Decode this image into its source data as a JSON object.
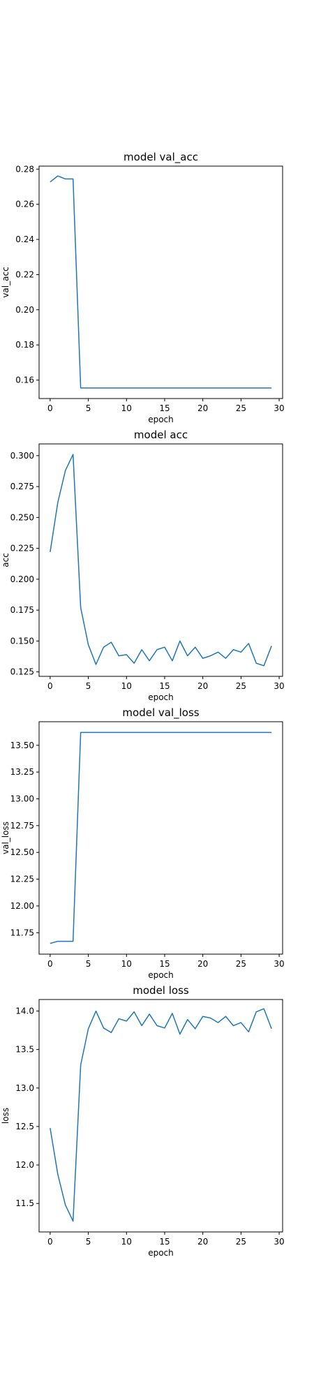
{
  "chart_data": [
    {
      "type": "line",
      "title": "model val_acc",
      "xlabel": "epoch",
      "ylabel": "val_acc",
      "xlim": [
        -1.45,
        30.45
      ],
      "ylim": [
        0.1495,
        0.2817
      ],
      "xticks": [
        0,
        5,
        10,
        15,
        20,
        25,
        30
      ],
      "yticks": [
        0.16,
        0.18,
        0.2,
        0.22,
        0.24,
        0.26,
        0.28
      ],
      "ytick_labels": [
        "0.16",
        "0.18",
        "0.20",
        "0.22",
        "0.24",
        "0.26",
        "0.28"
      ],
      "grid": false,
      "color": "#1f77b4",
      "x": [
        0,
        1,
        2,
        3,
        4,
        5,
        6,
        7,
        8,
        9,
        10,
        11,
        12,
        13,
        14,
        15,
        16,
        17,
        18,
        19,
        20,
        21,
        22,
        23,
        24,
        25,
        26,
        27,
        28,
        29
      ],
      "y": [
        0.2727,
        0.2761,
        0.2744,
        0.2744,
        0.1555,
        0.1555,
        0.1555,
        0.1555,
        0.1555,
        0.1555,
        0.1555,
        0.1555,
        0.1555,
        0.1555,
        0.1555,
        0.1555,
        0.1555,
        0.1555,
        0.1555,
        0.1555,
        0.1555,
        0.1555,
        0.1555,
        0.1555,
        0.1555,
        0.1555,
        0.1555,
        0.1555,
        0.1555,
        0.1555
      ]
    },
    {
      "type": "line",
      "title": "model acc",
      "xlabel": "epoch",
      "ylabel": "acc",
      "xlim": [
        -1.45,
        30.45
      ],
      "ylim": [
        0.1214,
        0.3095
      ],
      "xticks": [
        0,
        5,
        10,
        15,
        20,
        25,
        30
      ],
      "yticks": [
        0.125,
        0.15,
        0.175,
        0.2,
        0.225,
        0.25,
        0.275,
        0.3
      ],
      "ytick_labels": [
        "0.125",
        "0.150",
        "0.175",
        "0.200",
        "0.225",
        "0.250",
        "0.275",
        "0.300"
      ],
      "grid": false,
      "color": "#1f77b4",
      "x": [
        0,
        1,
        2,
        3,
        4,
        5,
        6,
        7,
        8,
        9,
        10,
        11,
        12,
        13,
        14,
        15,
        16,
        17,
        18,
        19,
        20,
        21,
        22,
        23,
        24,
        25,
        26,
        27,
        28,
        29
      ],
      "y": [
        0.222,
        0.262,
        0.288,
        0.301,
        0.177,
        0.147,
        0.131,
        0.145,
        0.149,
        0.138,
        0.139,
        0.132,
        0.143,
        0.134,
        0.143,
        0.145,
        0.134,
        0.15,
        0.138,
        0.145,
        0.136,
        0.138,
        0.141,
        0.136,
        0.143,
        0.141,
        0.148,
        0.132,
        0.13,
        0.146
      ]
    },
    {
      "type": "line",
      "title": "model val_loss",
      "xlabel": "epoch",
      "ylabel": "val_loss",
      "xlim": [
        -1.45,
        30.45
      ],
      "ylim": [
        11.55,
        13.72
      ],
      "xticks": [
        0,
        5,
        10,
        15,
        20,
        25,
        30
      ],
      "yticks": [
        11.75,
        12.0,
        12.25,
        12.5,
        12.75,
        13.0,
        13.25,
        13.5
      ],
      "ytick_labels": [
        "11.75",
        "12.00",
        "12.25",
        "12.50",
        "12.75",
        "13.00",
        "13.25",
        "13.50"
      ],
      "grid": false,
      "color": "#1f77b4",
      "x": [
        0,
        1,
        2,
        3,
        4,
        5,
        6,
        7,
        8,
        9,
        10,
        11,
        12,
        13,
        14,
        15,
        16,
        17,
        18,
        19,
        20,
        21,
        22,
        23,
        24,
        25,
        26,
        27,
        28,
        29
      ],
      "y": [
        11.65,
        11.67,
        11.67,
        11.67,
        13.62,
        13.62,
        13.62,
        13.62,
        13.62,
        13.62,
        13.62,
        13.62,
        13.62,
        13.62,
        13.62,
        13.62,
        13.62,
        13.62,
        13.62,
        13.62,
        13.62,
        13.62,
        13.62,
        13.62,
        13.62,
        13.62,
        13.62,
        13.62,
        13.62,
        13.62
      ]
    },
    {
      "type": "line",
      "title": "model loss",
      "xlabel": "epoch",
      "ylabel": "loss",
      "xlim": [
        -1.45,
        30.45
      ],
      "ylim": [
        11.13,
        14.15
      ],
      "xticks": [
        0,
        5,
        10,
        15,
        20,
        25,
        30
      ],
      "yticks": [
        11.5,
        12.0,
        12.5,
        13.0,
        13.5,
        14.0
      ],
      "ytick_labels": [
        "11.5",
        "12.0",
        "12.5",
        "13.0",
        "13.5",
        "14.0"
      ],
      "grid": false,
      "color": "#1f77b4",
      "x": [
        0,
        1,
        2,
        3,
        4,
        5,
        6,
        7,
        8,
        9,
        10,
        11,
        12,
        13,
        14,
        15,
        16,
        17,
        18,
        19,
        20,
        21,
        22,
        23,
        24,
        25,
        26,
        27,
        28,
        29
      ],
      "y": [
        12.48,
        11.88,
        11.48,
        11.27,
        13.3,
        13.77,
        14.0,
        13.78,
        13.72,
        13.9,
        13.87,
        13.99,
        13.81,
        13.96,
        13.81,
        13.78,
        13.97,
        13.7,
        13.89,
        13.77,
        13.93,
        13.91,
        13.85,
        13.93,
        13.81,
        13.85,
        13.73,
        13.99,
        14.03,
        13.77
      ]
    }
  ]
}
